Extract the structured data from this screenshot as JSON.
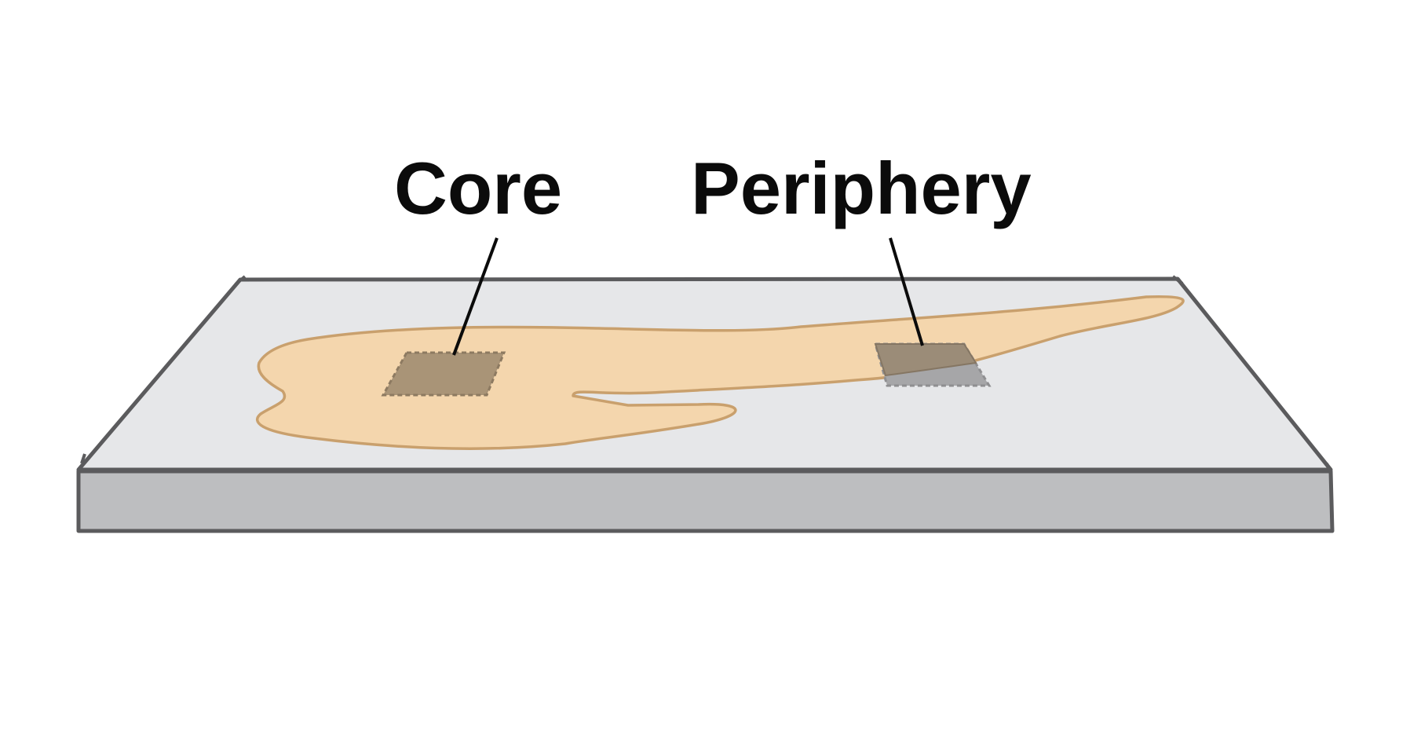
{
  "labels": {
    "core": "Core",
    "periphery": "Periphery"
  },
  "colors": {
    "background": "#ffffff",
    "slide_top": "#e6e7e9",
    "slide_side": "#bdbec0",
    "slide_outline": "#5b5b5d",
    "tissue_fill": "#f4d6ad",
    "tissue_outline": "#c9a06d",
    "sample_core": "#a99477",
    "sample_periphery": "#9b8c78",
    "sample_overhang": "#a6a6a8",
    "leader_line": "#0b0b0b"
  }
}
